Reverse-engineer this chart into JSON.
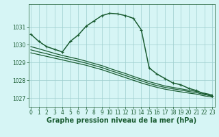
{
  "background_color": "#d6f5f5",
  "grid_color": "#9ecfcf",
  "line_color": "#1a5c32",
  "xlabel": "Graphe pression niveau de la mer (hPa)",
  "xlabel_fontsize": 7.0,
  "tick_fontsize": 5.5,
  "ylim": [
    1026.5,
    1032.3
  ],
  "xlim": [
    -0.3,
    23.3
  ],
  "yticks": [
    1027,
    1028,
    1029,
    1030,
    1031
  ],
  "xticks": [
    0,
    1,
    2,
    3,
    4,
    5,
    6,
    7,
    8,
    9,
    10,
    11,
    12,
    13,
    14,
    15,
    16,
    17,
    18,
    19,
    20,
    21,
    22,
    23
  ],
  "series": [
    {
      "x": [
        0,
        1,
        2,
        3,
        4,
        5,
        6,
        7,
        8,
        9,
        10,
        11,
        12,
        13,
        14,
        15,
        16,
        17,
        18,
        19,
        20,
        21,
        22,
        23
      ],
      "y": [
        1029.55,
        1029.45,
        1029.35,
        1029.25,
        1029.15,
        1029.05,
        1028.95,
        1028.85,
        1028.72,
        1028.6,
        1028.45,
        1028.3,
        1028.15,
        1028.0,
        1027.85,
        1027.72,
        1027.6,
        1027.5,
        1027.42,
        1027.35,
        1027.28,
        1027.22,
        1027.12,
        1027.05
      ],
      "marker": null,
      "linewidth": 0.9
    },
    {
      "x": [
        0,
        1,
        2,
        3,
        4,
        5,
        6,
        7,
        8,
        9,
        10,
        11,
        12,
        13,
        14,
        15,
        16,
        17,
        18,
        19,
        20,
        21,
        22,
        23
      ],
      "y": [
        1029.72,
        1029.6,
        1029.5,
        1029.38,
        1029.28,
        1029.18,
        1029.08,
        1028.97,
        1028.84,
        1028.72,
        1028.56,
        1028.42,
        1028.27,
        1028.12,
        1027.97,
        1027.82,
        1027.7,
        1027.6,
        1027.52,
        1027.45,
        1027.37,
        1027.3,
        1027.2,
        1027.12
      ],
      "marker": null,
      "linewidth": 0.9
    },
    {
      "x": [
        0,
        1,
        2,
        3,
        4,
        5,
        6,
        7,
        8,
        9,
        10,
        11,
        12,
        13,
        14,
        15,
        16,
        17,
        18,
        19,
        20,
        21,
        22,
        23
      ],
      "y": [
        1029.9,
        1029.78,
        1029.65,
        1029.52,
        1029.4,
        1029.3,
        1029.2,
        1029.08,
        1028.95,
        1028.83,
        1028.67,
        1028.52,
        1028.38,
        1028.22,
        1028.07,
        1027.92,
        1027.8,
        1027.68,
        1027.6,
        1027.52,
        1027.44,
        1027.37,
        1027.27,
        1027.18
      ],
      "marker": null,
      "linewidth": 0.9
    },
    {
      "x": [
        0,
        1,
        2,
        3,
        4,
        5,
        6,
        7,
        8,
        9,
        10,
        11,
        12,
        13,
        14,
        15,
        16,
        17,
        18,
        19,
        20,
        21,
        22,
        23
      ],
      "y": [
        1030.6,
        1030.2,
        1029.9,
        1029.75,
        1029.6,
        1030.2,
        1030.55,
        1031.05,
        1031.35,
        1031.65,
        1031.78,
        1031.75,
        1031.65,
        1031.5,
        1030.85,
        1028.7,
        1028.35,
        1028.1,
        1027.85,
        1027.75,
        1027.55,
        1027.42,
        1027.22,
        1027.1
      ],
      "marker": "+",
      "markersize": 3.5,
      "linewidth": 1.1
    }
  ]
}
